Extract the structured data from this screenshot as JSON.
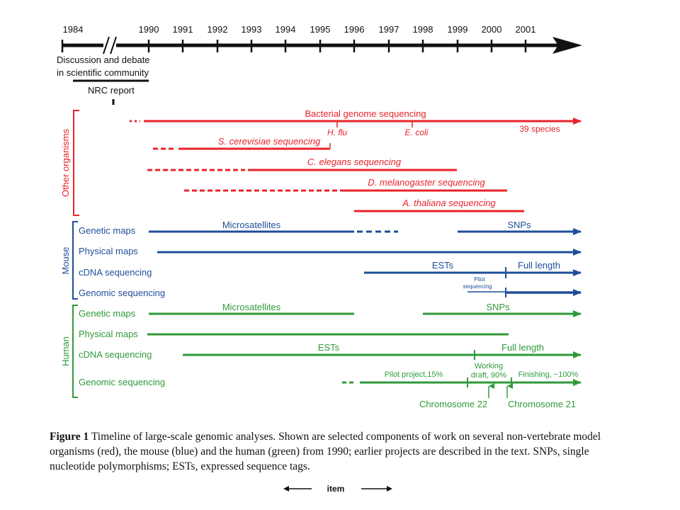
{
  "timeline": {
    "years": [
      "1984",
      "1990",
      "1991",
      "1992",
      "1993",
      "1994",
      "1995",
      "1996",
      "1997",
      "1998",
      "1999",
      "2000",
      "2001"
    ],
    "discussion_line1": "Discussion and debate",
    "discussion_line2": "in scientific community",
    "nrc_label": "NRC report"
  },
  "groups": {
    "other": "Other organisms",
    "mouse": "Mouse",
    "human": "Human"
  },
  "colors": {
    "red": "#e8232a",
    "blue": "#1f4e99",
    "green": "#2f9a3a",
    "black": "#111111"
  },
  "other_rows": {
    "bacterial": "Bacterial genome sequencing",
    "hflu": "H. flu",
    "ecoli": "E. coli",
    "species": "39 species",
    "scerevisiae": "S. cerevisiae sequencing",
    "celegans": "C. elegans sequencing",
    "dmelanogaster": "D. melanogaster sequencing",
    "athaliana": "A. thaliana sequencing"
  },
  "mouse_rows": {
    "genetic_maps": "Genetic maps",
    "microsatellites": "Microsatellites",
    "snps": "SNPs",
    "physical_maps": "Physical maps",
    "cdna": "cDNA sequencing",
    "ests": "ESTs",
    "full_length": "Full length",
    "pilot_line1": "Pilot",
    "pilot_line2": "sequencing",
    "genomic": "Genomic sequencing"
  },
  "human_rows": {
    "genetic_maps": "Genetic maps",
    "microsatellites": "Microsatellites",
    "snps": "SNPs",
    "physical_maps": "Physical maps",
    "cdna": "cDNA sequencing",
    "ests": "ESTs",
    "full_length": "Full length",
    "genomic": "Genomic sequencing",
    "pilot_project": "Pilot project,15%",
    "working_line1": "Working",
    "working_line2": "draft, 90%",
    "finishing": "Finishing, ~100%",
    "chr22": "Chromosome 22",
    "chr21": "Chromosome 21"
  },
  "caption": {
    "lead": "Figure 1",
    "text": " Timeline of large-scale genomic analyses. Shown are selected components of work on several non-vertebrate model organisms (red), the mouse (blue) and the human (green) from 1990; earlier projects are described in the text. SNPs, single nucleotide polymorphisms; ESTs, expressed sequence tags."
  },
  "nav": {
    "label": "item"
  }
}
